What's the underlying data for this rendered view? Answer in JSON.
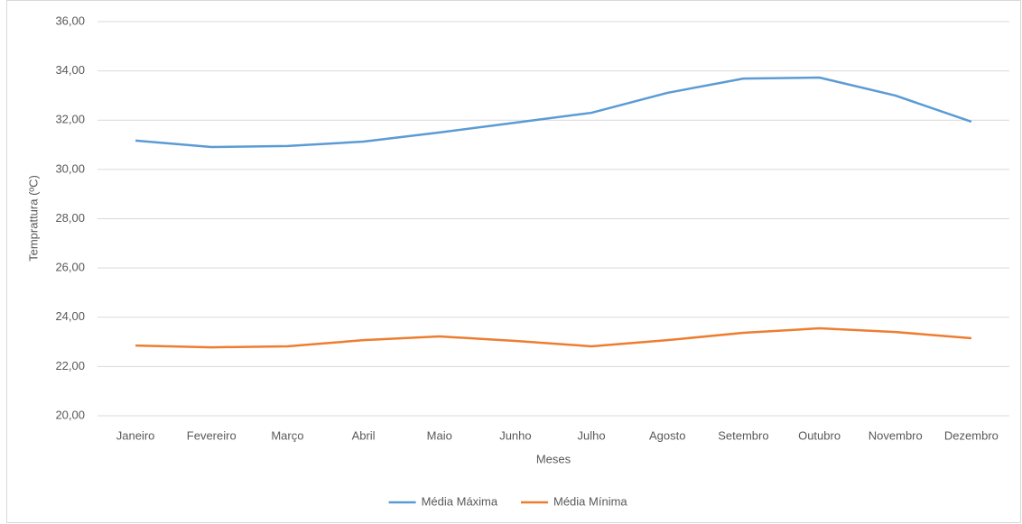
{
  "chart_data": {
    "type": "line",
    "x_label": "Meses",
    "y_label": "Temprattura (ºC)",
    "categories": [
      "Janeiro",
      "Fevereiro",
      "Março",
      "Abril",
      "Maio",
      "Junho",
      "Julho",
      "Agosto",
      "Setembro",
      "Outubro",
      "Novembro",
      "Dezembro"
    ],
    "series": [
      {
        "name": "Média Máxima",
        "color": "#5b9bd5",
        "values": [
          31.17,
          30.91,
          30.95,
          31.13,
          31.5,
          31.9,
          32.3,
          33.11,
          33.69,
          33.73,
          33.0,
          31.94
        ]
      },
      {
        "name": "Média Mínima",
        "color": "#ed7d31",
        "values": [
          22.85,
          22.78,
          22.82,
          23.07,
          23.22,
          23.04,
          22.82,
          23.07,
          23.37,
          23.55,
          23.4,
          23.15
        ]
      }
    ],
    "ylim": [
      20,
      36
    ],
    "yticks": [
      {
        "value": 20,
        "label": "20,00"
      },
      {
        "value": 22,
        "label": "22,00"
      },
      {
        "value": 24,
        "label": "24,00"
      },
      {
        "value": 26,
        "label": "26,00"
      },
      {
        "value": 28,
        "label": "28,00"
      },
      {
        "value": 30,
        "label": "30,00"
      },
      {
        "value": 32,
        "label": "32,00"
      },
      {
        "value": 34,
        "label": "34,00"
      },
      {
        "value": 36,
        "label": "36,00"
      }
    ],
    "grid": true,
    "legend": "bottom"
  }
}
